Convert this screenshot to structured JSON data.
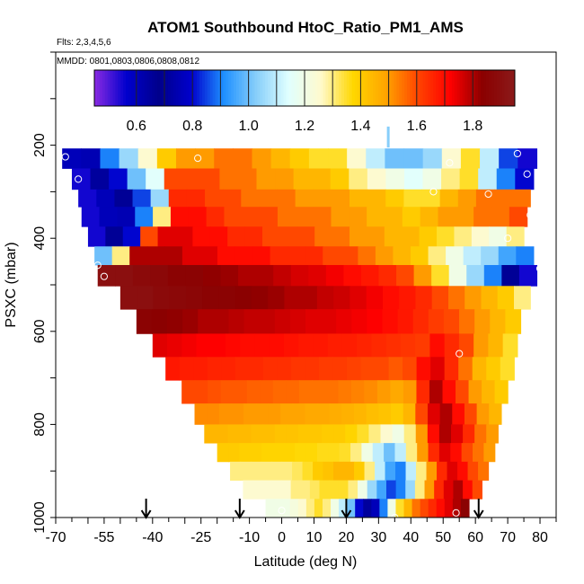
{
  "chart_data": {
    "type": "heatmap",
    "title": "ATOM1 Southbound HtoC_Ratio_PM1_AMS",
    "subtitle": "Flts: 2,3,4,5,6",
    "annotation": "MMDD: 0801,0803,0806,0808,0812",
    "xlabel": "Latitude (deg N)",
    "ylabel": "PSXC (mbar)",
    "xlim": [
      -70,
      85
    ],
    "ylim": [
      1000,
      0
    ],
    "x_tick_labels": [
      "-70",
      "-55",
      "-40",
      "-25",
      "-10",
      "0",
      "10",
      "20",
      "30",
      "40",
      "50",
      "60",
      "70",
      "80"
    ],
    "y_tick_labels": [
      "200",
      "400",
      "600",
      "800",
      "1000"
    ],
    "colorbar": {
      "range": [
        0.45,
        1.95
      ],
      "tick_values": [
        0.6,
        0.8,
        1.0,
        1.2,
        1.4,
        1.6,
        1.8
      ],
      "tick_labels": [
        "0.6",
        "0.8",
        "1.0",
        "1.2",
        "1.4",
        "1.6",
        "1.8"
      ],
      "divider_values": [
        0.6,
        0.7,
        0.8,
        0.9,
        1.0,
        1.1,
        1.2,
        1.3,
        1.4,
        1.5,
        1.6,
        1.7,
        1.8
      ],
      "colors": [
        "#8a2be2",
        "#0000cd",
        "#00008b",
        "#0000cd",
        "#1e90ff",
        "#87cefa",
        "#e0ffff",
        "#fffacd",
        "#ffd700",
        "#ffa500",
        "#ff4500",
        "#ff0000",
        "#8b0000",
        "#8b1a1a"
      ]
    },
    "pressure_levels": [
      225,
      275,
      315,
      350,
      400,
      435,
      480,
      525,
      580,
      630,
      680,
      730,
      780,
      820,
      860,
      900,
      940,
      980
    ],
    "rows": [
      {
        "p": 225,
        "x0": -68,
        "x1": 79,
        "values": [
          0.6,
          0.75,
          0.9,
          1.05,
          1.25,
          1.4,
          1.5,
          1.5,
          1.55,
          1.55,
          1.5,
          1.45,
          1.4,
          1.35,
          1.35,
          1.25,
          1.1,
          1.0,
          1.0,
          1.05,
          1.25,
          1.35,
          1.1,
          0.85,
          0.55
        ]
      },
      {
        "p": 275,
        "x0": -65,
        "x1": 78,
        "values": [
          0.55,
          0.65,
          0.8,
          1.0,
          1.15,
          1.6,
          1.6,
          1.6,
          1.55,
          1.55,
          1.5,
          1.5,
          1.45,
          1.45,
          1.4,
          1.3,
          1.25,
          1.2,
          1.15,
          1.2,
          1.3,
          1.35,
          1.1,
          0.9,
          0.8
        ]
      },
      {
        "p": 315,
        "x0": -63,
        "x1": 77,
        "values": [
          0.55,
          0.6,
          0.7,
          0.85,
          1.05,
          1.65,
          1.65,
          1.6,
          1.6,
          1.55,
          1.55,
          1.55,
          1.5,
          1.5,
          1.5,
          1.45,
          1.45,
          1.4,
          1.35,
          1.35,
          1.45,
          1.5,
          1.55,
          1.55,
          1.55
        ]
      },
      {
        "p": 350,
        "x0": -62,
        "x1": 76,
        "values": [
          0.55,
          0.6,
          0.75,
          0.9,
          1.3,
          1.7,
          1.7,
          1.65,
          1.6,
          1.6,
          1.6,
          1.55,
          1.55,
          1.55,
          1.5,
          1.5,
          1.45,
          1.45,
          1.4,
          1.45,
          1.5,
          1.5,
          1.55,
          1.55,
          1.6
        ]
      },
      {
        "p": 400,
        "x0": -60,
        "x1": 75,
        "values": [
          0.55,
          0.7,
          0.8,
          1.6,
          1.75,
          1.75,
          1.7,
          1.7,
          1.65,
          1.65,
          1.6,
          1.6,
          1.6,
          1.55,
          1.55,
          1.5,
          1.5,
          1.45,
          1.45,
          1.4,
          1.35,
          1.3,
          1.25,
          1.2,
          1.3
        ]
      },
      {
        "p": 435,
        "x0": -58,
        "x1": 78,
        "values": [
          1.0,
          1.3,
          1.8,
          1.8,
          1.8,
          1.75,
          1.75,
          1.7,
          1.7,
          1.7,
          1.65,
          1.65,
          1.65,
          1.6,
          1.6,
          1.55,
          1.5,
          1.45,
          1.4,
          1.3,
          1.2,
          1.1,
          1.05,
          0.95,
          0.9
        ]
      },
      {
        "p": 480,
        "x0": -57,
        "x1": 79,
        "values": [
          1.9,
          1.9,
          1.88,
          1.87,
          1.85,
          1.85,
          1.83,
          1.82,
          1.8,
          1.8,
          1.78,
          1.76,
          1.75,
          1.73,
          1.7,
          1.68,
          1.65,
          1.6,
          1.5,
          1.35,
          1.2,
          1.05,
          0.9,
          0.7,
          0.55
        ]
      },
      {
        "p": 525,
        "x0": -50,
        "x1": 77,
        "values": [
          1.9,
          1.9,
          1.88,
          1.87,
          1.86,
          1.85,
          1.85,
          1.84,
          1.83,
          1.82,
          1.8,
          1.8,
          1.78,
          1.77,
          1.75,
          1.73,
          1.7,
          1.68,
          1.65,
          1.6,
          1.55,
          1.5,
          1.45,
          1.4,
          1.3
        ]
      },
      {
        "p": 580,
        "x0": -45,
        "x1": 74,
        "values": [
          1.85,
          1.84,
          1.83,
          1.82,
          1.8,
          1.8,
          1.79,
          1.78,
          1.78,
          1.77,
          1.76,
          1.75,
          1.75,
          1.74,
          1.73,
          1.72,
          1.7,
          1.68,
          1.65,
          1.62,
          1.6,
          1.55,
          1.5,
          1.45,
          1.4
        ]
      },
      {
        "p": 630,
        "x0": -40,
        "x1": 73,
        "values": [
          1.75,
          1.74,
          1.73,
          1.72,
          1.72,
          1.71,
          1.7,
          1.7,
          1.7,
          1.69,
          1.68,
          1.68,
          1.67,
          1.67,
          1.66,
          1.65,
          1.64,
          1.63,
          1.62,
          1.7,
          1.65,
          1.6,
          1.5,
          1.45,
          1.35
        ]
      },
      {
        "p": 680,
        "x0": -36,
        "x1": 72,
        "values": [
          1.68,
          1.67,
          1.67,
          1.66,
          1.66,
          1.65,
          1.65,
          1.64,
          1.64,
          1.63,
          1.63,
          1.62,
          1.62,
          1.61,
          1.6,
          1.6,
          1.58,
          1.6,
          1.7,
          1.75,
          1.65,
          1.55,
          1.45,
          1.4,
          1.35
        ]
      },
      {
        "p": 730,
        "x0": -31,
        "x1": 70,
        "values": [
          1.6,
          1.6,
          1.59,
          1.58,
          1.58,
          1.57,
          1.57,
          1.56,
          1.56,
          1.55,
          1.55,
          1.55,
          1.54,
          1.53,
          1.52,
          1.5,
          1.48,
          1.5,
          1.65,
          1.8,
          1.7,
          1.6,
          1.5,
          1.45,
          1.4
        ]
      },
      {
        "p": 780,
        "x0": -27,
        "x1": 68,
        "values": [
          1.52,
          1.52,
          1.51,
          1.51,
          1.5,
          1.5,
          1.5,
          1.49,
          1.49,
          1.48,
          1.48,
          1.47,
          1.46,
          1.45,
          1.43,
          1.42,
          1.4,
          1.45,
          1.6,
          1.75,
          1.8,
          1.7,
          1.6,
          1.5,
          1.45
        ]
      },
      {
        "p": 820,
        "x0": -24,
        "x1": 67,
        "values": [
          1.45,
          1.45,
          1.44,
          1.44,
          1.43,
          1.43,
          1.42,
          1.42,
          1.41,
          1.41,
          1.4,
          1.4,
          1.38,
          1.35,
          1.3,
          1.25,
          1.2,
          1.3,
          1.5,
          1.7,
          1.8,
          1.75,
          1.65,
          1.55,
          1.5
        ]
      },
      {
        "p": 860,
        "x0": -20,
        "x1": 66,
        "values": [
          1.4,
          1.4,
          1.39,
          1.39,
          1.38,
          1.38,
          1.38,
          1.37,
          1.37,
          1.36,
          1.36,
          1.35,
          1.3,
          1.2,
          1.1,
          1.0,
          1.1,
          1.3,
          1.5,
          1.65,
          1.75,
          1.7,
          1.6,
          1.55,
          1.5
        ]
      },
      {
        "p": 900,
        "x0": -16,
        "x1": 64,
        "values": [
          1.3,
          1.3,
          1.3,
          1.3,
          1.3,
          1.3,
          1.32,
          1.35,
          1.4,
          1.42,
          1.45,
          1.45,
          1.4,
          1.3,
          1.1,
          0.95,
          0.9,
          1.1,
          1.3,
          1.5,
          1.65,
          1.75,
          1.7,
          1.6,
          1.55
        ]
      },
      {
        "p": 940,
        "x0": -12,
        "x1": 62,
        "values": [
          1.25,
          1.25,
          1.25,
          1.25,
          1.25,
          1.3,
          1.3,
          1.32,
          1.35,
          1.35,
          1.35,
          1.3,
          1.2,
          1.05,
          0.95,
          0.85,
          0.9,
          1.05,
          1.3,
          1.5,
          1.65,
          1.75,
          1.8,
          1.7,
          1.6
        ]
      },
      {
        "p": 980,
        "x0": -5,
        "x1": 58,
        "values": [
          1.2,
          1.2,
          1.2,
          1.22,
          1.25,
          1.3,
          1.35,
          1.3,
          1.2,
          1.1,
          1.0,
          0.8,
          0.65,
          0.6,
          0.9,
          1.2,
          1.35,
          1.45,
          1.55,
          1.6,
          1.65,
          1.7,
          1.75,
          1.8,
          1.85
        ]
      }
    ],
    "markers": [
      {
        "lat": -67,
        "p": 225
      },
      {
        "lat": -26,
        "p": 228
      },
      {
        "lat": -63,
        "p": 273
      },
      {
        "lat": 52,
        "p": 238
      },
      {
        "lat": 73,
        "p": 218
      },
      {
        "lat": 47,
        "p": 300
      },
      {
        "lat": 64,
        "p": 305
      },
      {
        "lat": 76,
        "p": 262
      },
      {
        "lat": 77,
        "p": 350
      },
      {
        "lat": 70,
        "p": 400
      },
      {
        "lat": -57,
        "p": 458
      },
      {
        "lat": -55,
        "p": 482
      },
      {
        "lat": 80,
        "p": 465
      },
      {
        "lat": 55,
        "p": 648
      },
      {
        "lat": 0,
        "p": 985
      },
      {
        "lat": 35,
        "p": 1000
      },
      {
        "lat": 54,
        "p": 990
      }
    ],
    "arrows": [
      -42,
      -13,
      20,
      61
    ],
    "gap_cell": {
      "lat": 33,
      "p": 185
    }
  }
}
